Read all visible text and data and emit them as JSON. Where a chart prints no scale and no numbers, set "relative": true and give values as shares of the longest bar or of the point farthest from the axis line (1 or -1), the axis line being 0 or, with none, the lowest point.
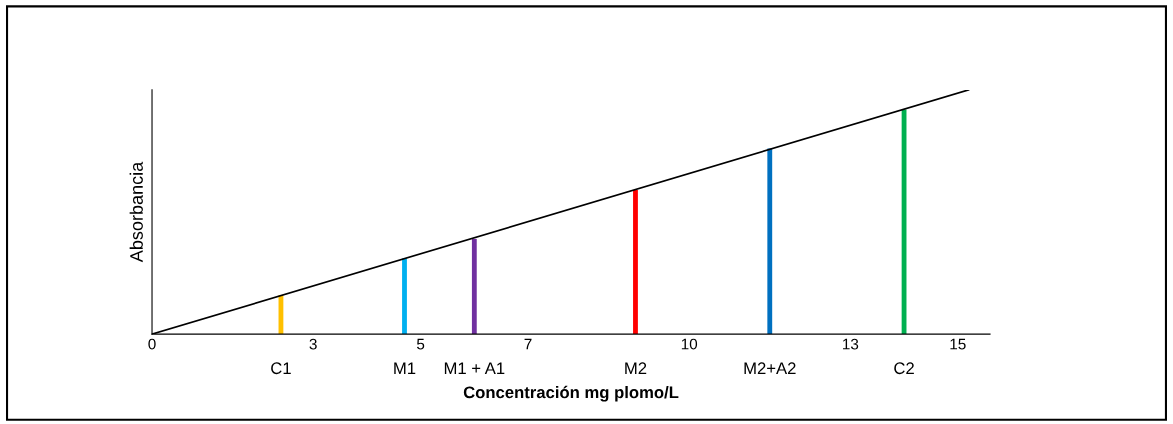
{
  "chart_data": {
    "type": "bar",
    "relative": true,
    "xlabel": "Concentración mg plomo/L",
    "ylabel": "Absorbancia",
    "xlim": [
      0,
      15.6
    ],
    "xticks": [
      0,
      3,
      5,
      7,
      10,
      13,
      15
    ],
    "grid": false,
    "series": [
      {
        "x": [
          2.4,
          4.7,
          6,
          9,
          11.5,
          14
        ],
        "values": [
          0.16,
          0.31,
          0.39,
          0.59,
          0.76,
          0.92
        ],
        "colors": [
          "#ffc000",
          "#00b0f0",
          "#7030a0",
          "#ff0000",
          "#0070c0",
          "#00b050"
        ]
      },
      {
        "type": "line",
        "x": [
          0,
          15.2
        ],
        "values": [
          0,
          1
        ],
        "color": "#000000"
      }
    ],
    "annotations": [
      "C1",
      "M1",
      "M1 + A1",
      "M2",
      "M2+A2",
      "C2"
    ]
  }
}
